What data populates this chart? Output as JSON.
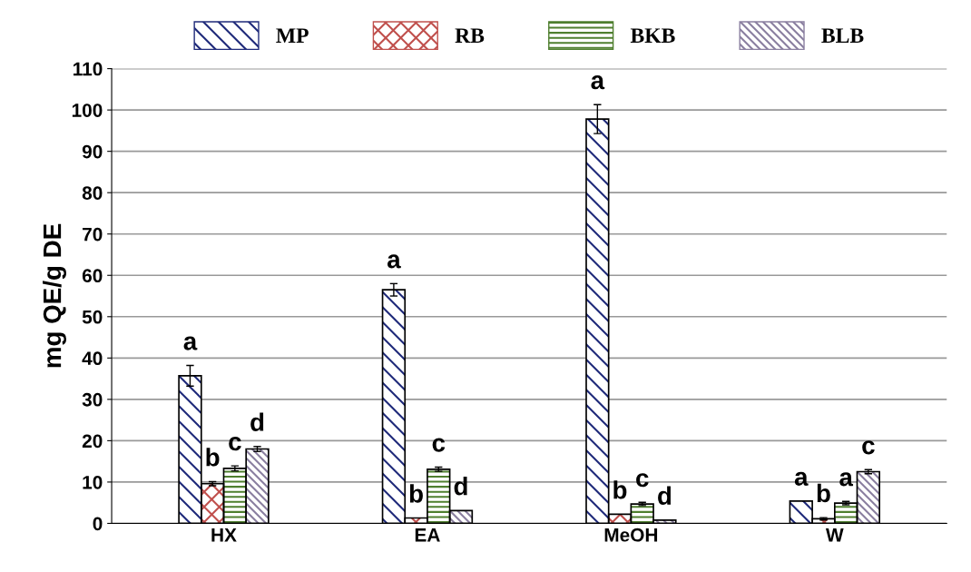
{
  "chart_data": {
    "type": "bar",
    "ylabel": "mg QE/g DE",
    "categories": [
      "HX",
      "EA",
      "MeOH",
      "W"
    ],
    "series": [
      {
        "name": "MP",
        "color": "#1f2a7a",
        "values": [
          35.7,
          56.5,
          97.8,
          5.4
        ],
        "errors": [
          2.5,
          1.5,
          3.5,
          null
        ],
        "value_labels": [
          "a",
          "a",
          "a",
          "a"
        ]
      },
      {
        "name": "RB",
        "color": "#c0504d",
        "values": [
          9.6,
          1.3,
          2.2,
          1.1
        ],
        "errors": [
          0.5,
          null,
          null,
          0.3
        ],
        "value_labels": [
          "b",
          "b",
          "b",
          "b"
        ]
      },
      {
        "name": "BKB",
        "color": "#4f7f2f",
        "values": [
          13.3,
          13.1,
          4.7,
          4.9
        ],
        "errors": [
          0.6,
          0.5,
          0.4,
          0.4
        ],
        "value_labels": [
          "c",
          "c",
          "c",
          "a"
        ]
      },
      {
        "name": "BLB",
        "color": "#8a7fa0",
        "values": [
          18.0,
          3.1,
          0.8,
          12.5
        ],
        "errors": [
          0.6,
          null,
          null,
          0.5
        ],
        "value_labels": [
          "d",
          "d",
          "d",
          "c"
        ]
      }
    ],
    "ylim": [
      0,
      110
    ],
    "yticks": [
      0,
      10,
      20,
      30,
      40,
      50,
      60,
      70,
      80,
      90,
      100,
      110
    ],
    "grid": "y",
    "legend": "top"
  }
}
